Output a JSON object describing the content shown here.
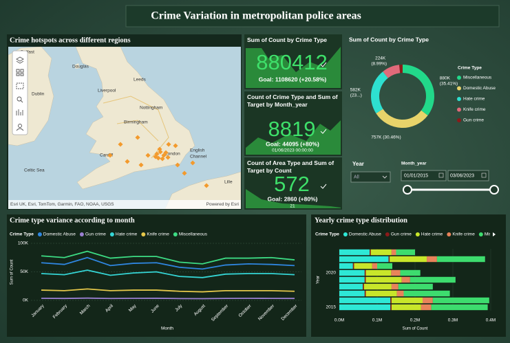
{
  "header": {
    "title": "Crime Variation in metropolitan police areas"
  },
  "map": {
    "title": "Crime hotspots across different regions",
    "labels": [
      "Belfast",
      "Douglas",
      "Leeds",
      "Dublin",
      "Liverpool",
      "Nottingham",
      "Birmingham",
      "Cardiff",
      "London",
      "English",
      "Channel",
      "Celtic Sea",
      "Lille"
    ],
    "attribution": "Esri UK, Esri, TomTom, Garmin, FAO, NOAA, USGS",
    "powered_by": "Powered by Esri"
  },
  "kpis": [
    {
      "title": "Sum of Count by Crime Type",
      "value": 880412,
      "goal": "Goal: 1108620 (+20.58%)"
    },
    {
      "title": "Count of Crime Type and Sum of Target by Month_year",
      "value": 8819,
      "goal": "Goal: 44095 (+80%)",
      "note": "01/06/2023 00:00:00"
    },
    {
      "title": "Count of Area Type and Sum of Target by Count",
      "value": 572,
      "goal": "Goal: 2860 (+80%)",
      "note": "21"
    }
  ],
  "filters": {
    "year_label": "Year",
    "year_value": "All",
    "month_label": "Month_year",
    "start": "01/01/2015",
    "end": "03/06/2023"
  },
  "chart_data": [
    {
      "type": "pie",
      "donut": true,
      "title": "Sum of Count by Crime Type",
      "legend_title": "Crime Type",
      "categories": [
        "Miscellaneous",
        "Domestic Abuse",
        "Hate crime",
        "Knife crime",
        "Gun crime"
      ],
      "values": [
        880000,
        757000,
        582000,
        224000,
        43000
      ],
      "value_labels": [
        "880K (35.41%)",
        "757K (30.46%)",
        "582K (23...)",
        "224K (8.99%)",
        null
      ],
      "colors": [
        "#22d88a",
        "#e8d36a",
        "#2ee0d0",
        "#e06a7a",
        "#8b1a1a"
      ]
    },
    {
      "type": "line",
      "title": "Crime type variance according to month",
      "legend_title": "Crime Type",
      "x_label": "Month",
      "y_label": "Sum of Count",
      "categories": [
        "January",
        "February",
        "March",
        "April",
        "May",
        "June",
        "July",
        "August",
        "September",
        "October",
        "November",
        "December"
      ],
      "series": [
        {
          "name": "Domestic Abuse",
          "color": "#2f86e0",
          "values": [
            66000,
            63000,
            75000,
            61000,
            65000,
            66000,
            58000,
            55000,
            62000,
            64000,
            63000,
            61000
          ]
        },
        {
          "name": "Gun crime",
          "color": "#9a7fd0",
          "values": [
            3600,
            3400,
            4000,
            3300,
            3600,
            3700,
            3200,
            3000,
            3500,
            3600,
            3500,
            3400
          ]
        },
        {
          "name": "Hate crime",
          "color": "#35d6d6",
          "values": [
            47000,
            45000,
            53000,
            44000,
            48000,
            50000,
            42000,
            40000,
            46000,
            47000,
            47000,
            45000
          ]
        },
        {
          "name": "Knife crime",
          "color": "#e6c84a",
          "values": [
            18000,
            17000,
            20000,
            17000,
            18000,
            18000,
            16000,
            15000,
            17000,
            17000,
            17000,
            16000
          ]
        },
        {
          "name": "Miscellaneous",
          "color": "#3ddc84",
          "values": [
            78000,
            75000,
            86000,
            74000,
            77000,
            77000,
            67000,
            64000,
            74000,
            74000,
            75000,
            71000
          ]
        }
      ],
      "ylim": [
        0,
        100000
      ],
      "yticks": [
        {
          "value": 0,
          "label": "0K"
        },
        {
          "value": 50000,
          "label": "50K"
        },
        {
          "value": 100000,
          "label": "100K"
        }
      ]
    },
    {
      "type": "bar",
      "orientation": "horizontal",
      "stacked": true,
      "title": "Yearly crime type distribution",
      "legend_title": "Crime Type",
      "x_label": "Sum of Count",
      "y_label": "Year",
      "categories": [
        2015,
        null,
        null,
        null,
        null,
        2020,
        null,
        null,
        null
      ],
      "series": [
        {
          "name": "Domestic Abuse",
          "color": "#2ee8d6",
          "values": [
            135000,
            135000,
            67000,
            62000,
            67000,
            67000,
            36000,
            130000,
            80000
          ]
        },
        {
          "name": "Gun crime",
          "color": "#8b1a1a",
          "values": [
            3000,
            3000,
            3000,
            3000,
            3000,
            3000,
            3000,
            3000,
            3000
          ]
        },
        {
          "name": "Hate crime",
          "color": "#c8e62a",
          "values": [
            78000,
            82000,
            82000,
            73000,
            95000,
            67000,
            48000,
            98000,
            55000
          ]
        },
        {
          "name": "Knife crime",
          "color": "#e8835a",
          "values": [
            27000,
            27000,
            18000,
            18000,
            22000,
            24000,
            13000,
            27000,
            12000
          ]
        },
        {
          "name": "Miscellaneous",
          "color": "#3ddc6e",
          "values": [
            149000,
            149000,
            122000,
            91000,
            120000,
            53000,
            40000,
            127000,
            50000
          ]
        }
      ],
      "xlim": [
        0,
        400000
      ],
      "xticks": [
        {
          "value": 0,
          "label": "0.0M"
        },
        {
          "value": 100000,
          "label": "0.1M"
        },
        {
          "value": 200000,
          "label": "0.2M"
        },
        {
          "value": 300000,
          "label": "0.3M"
        },
        {
          "value": 400000,
          "label": "0.4M"
        }
      ]
    }
  ]
}
